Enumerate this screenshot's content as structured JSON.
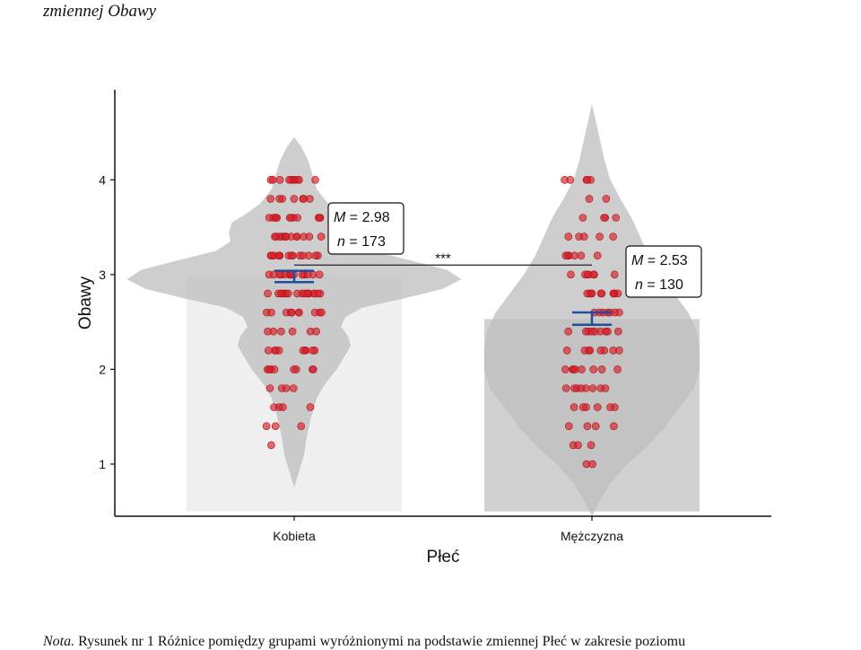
{
  "header": {
    "text": "zmiennej Obawy"
  },
  "note": {
    "label": "Nota.",
    "text": "Rysunek nr 1 Różnice pomiędzy grupami wyróżnionymi na podstawie zmiennej Płeć w zakresie poziomu"
  },
  "chart_data": {
    "type": "violin",
    "xlabel": "Płeć",
    "ylabel": "Obawy",
    "categories": [
      "Kobieta",
      "Mężczyzna"
    ],
    "ylim": [
      0.45,
      4.95
    ],
    "yticks": [
      1,
      2,
      3,
      4
    ],
    "grid": false,
    "means": [
      2.98,
      2.53
    ],
    "n": [
      173,
      130
    ],
    "m_label": "M",
    "n_label": "n",
    "significance": "***",
    "colors": {
      "points": "#d81e28",
      "violin": "#bdbdbd",
      "bar_first": "#efefef",
      "bar_second": "#cccccc",
      "errorbar": "#1f4e9c"
    },
    "violins": [
      {
        "category": "Kobieta",
        "min": 0.75,
        "max": 4.45,
        "profile": [
          [
            0.75,
            0
          ],
          [
            0.9,
            0.03
          ],
          [
            1.1,
            0.07
          ],
          [
            1.3,
            0.09
          ],
          [
            1.5,
            0.12
          ],
          [
            1.7,
            0.16
          ],
          [
            1.85,
            0.22
          ],
          [
            2.0,
            0.3
          ],
          [
            2.15,
            0.36
          ],
          [
            2.25,
            0.4
          ],
          [
            2.35,
            0.38
          ],
          [
            2.45,
            0.33
          ],
          [
            2.55,
            0.36
          ],
          [
            2.65,
            0.48
          ],
          [
            2.75,
            0.78
          ],
          [
            2.85,
            1.05
          ],
          [
            2.95,
            1.18
          ],
          [
            3.05,
            1.08
          ],
          [
            3.15,
            0.82
          ],
          [
            3.25,
            0.55
          ],
          [
            3.35,
            0.45
          ],
          [
            3.45,
            0.46
          ],
          [
            3.55,
            0.44
          ],
          [
            3.65,
            0.33
          ],
          [
            3.75,
            0.24
          ],
          [
            3.9,
            0.16
          ],
          [
            4.05,
            0.13
          ],
          [
            4.2,
            0.1
          ],
          [
            4.35,
            0.05
          ],
          [
            4.45,
            0
          ]
        ]
      },
      {
        "category": "Mężczyzna",
        "min": 0.45,
        "max": 4.8,
        "profile": [
          [
            0.45,
            0
          ],
          [
            0.6,
            0.05
          ],
          [
            0.8,
            0.13
          ],
          [
            1.0,
            0.25
          ],
          [
            1.2,
            0.4
          ],
          [
            1.4,
            0.52
          ],
          [
            1.6,
            0.62
          ],
          [
            1.8,
            0.72
          ],
          [
            2.0,
            0.76
          ],
          [
            2.2,
            0.76
          ],
          [
            2.4,
            0.74
          ],
          [
            2.6,
            0.68
          ],
          [
            2.8,
            0.58
          ],
          [
            3.0,
            0.48
          ],
          [
            3.2,
            0.4
          ],
          [
            3.4,
            0.34
          ],
          [
            3.6,
            0.28
          ],
          [
            3.8,
            0.2
          ],
          [
            4.0,
            0.13
          ],
          [
            4.2,
            0.09
          ],
          [
            4.4,
            0.06
          ],
          [
            4.6,
            0.03
          ],
          [
            4.8,
            0
          ]
        ]
      }
    ],
    "points": [
      {
        "category": "Kobieta",
        "values": [
          4.0,
          4.0,
          4.0,
          4.0,
          4.0,
          4.0,
          4.0,
          4.0,
          4.0,
          4.0,
          3.8,
          3.8,
          3.8,
          3.8,
          3.8,
          3.8,
          3.8,
          3.6,
          3.6,
          3.6,
          3.6,
          3.6,
          3.6,
          3.6,
          3.6,
          3.6,
          3.6,
          3.6,
          3.6,
          3.4,
          3.4,
          3.4,
          3.4,
          3.4,
          3.4,
          3.4,
          3.4,
          3.4,
          3.4,
          3.4,
          3.4,
          3.4,
          3.2,
          3.2,
          3.2,
          3.2,
          3.2,
          3.2,
          3.2,
          3.2,
          3.2,
          3.2,
          3.2,
          3.2,
          3.2,
          3.2,
          3.0,
          3.0,
          3.0,
          3.0,
          3.0,
          3.0,
          3.0,
          3.0,
          3.0,
          3.0,
          3.0,
          3.0,
          3.0,
          3.0,
          3.0,
          3.0,
          2.8,
          2.8,
          2.8,
          2.8,
          2.8,
          2.8,
          2.8,
          2.8,
          2.8,
          2.8,
          2.8,
          2.8,
          2.8,
          2.8,
          2.8,
          2.8,
          2.8,
          2.6,
          2.6,
          2.6,
          2.6,
          2.6,
          2.6,
          2.6,
          2.6,
          2.6,
          2.6,
          2.4,
          2.4,
          2.4,
          2.4,
          2.4,
          2.4,
          2.2,
          2.2,
          2.2,
          2.2,
          2.2,
          2.2,
          2.2,
          2.2,
          2.2,
          2.0,
          2.0,
          2.0,
          2.0,
          2.0,
          2.0,
          2.0,
          2.0,
          1.8,
          1.8,
          1.8,
          1.8,
          1.6,
          1.6,
          1.6,
          1.6,
          1.4,
          1.4,
          1.4,
          1.2
        ]
      },
      {
        "category": "Mężczyzna",
        "values": [
          4.0,
          4.0,
          4.0,
          4.0,
          4.0,
          3.8,
          3.8,
          3.6,
          3.6,
          3.6,
          3.6,
          3.4,
          3.4,
          3.4,
          3.4,
          3.4,
          3.2,
          3.2,
          3.2,
          3.2,
          3.2,
          3.2,
          3.0,
          3.0,
          3.0,
          3.0,
          3.0,
          3.0,
          3.0,
          2.8,
          2.8,
          2.8,
          2.8,
          2.8,
          2.8,
          2.8,
          2.8,
          2.8,
          2.8,
          2.6,
          2.6,
          2.6,
          2.6,
          2.6,
          2.6,
          2.6,
          2.4,
          2.4,
          2.4,
          2.4,
          2.4,
          2.4,
          2.4,
          2.4,
          2.4,
          2.2,
          2.2,
          2.2,
          2.2,
          2.2,
          2.2,
          2.2,
          2.2,
          2.0,
          2.0,
          2.0,
          2.0,
          2.0,
          2.0,
          2.0,
          2.0,
          1.8,
          1.8,
          1.8,
          1.8,
          1.8,
          1.8,
          1.8,
          1.8,
          1.6,
          1.6,
          1.6,
          1.6,
          1.6,
          1.6,
          1.4,
          1.4,
          1.4,
          1.4,
          1.2,
          1.2,
          1.2,
          1.0,
          1.0
        ]
      }
    ],
    "errorbars": [
      {
        "category": "Kobieta",
        "mean": 2.98,
        "low": 2.92,
        "high": 3.04
      },
      {
        "category": "Mężczyzna",
        "mean": 2.53,
        "low": 2.47,
        "high": 2.6
      }
    ]
  }
}
